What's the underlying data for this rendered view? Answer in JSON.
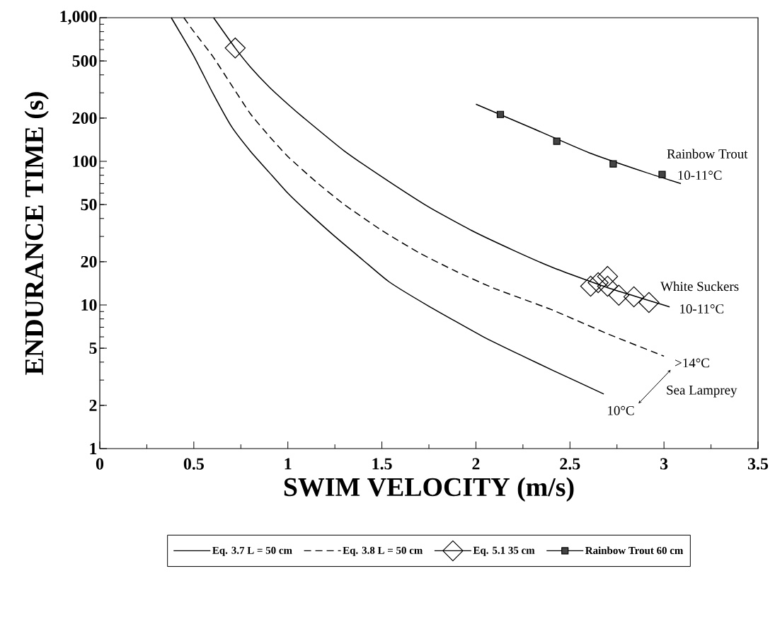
{
  "chart_data": {
    "type": "line",
    "xlabel": "SWIM VELOCITY (m/s)",
    "ylabel": "ENDURANCE TIME (s)",
    "xlim": [
      0,
      3.5
    ],
    "ylim": [
      1,
      1000
    ],
    "log": "y",
    "xticks": [
      0,
      0.5,
      1,
      1.5,
      2,
      2.5,
      3,
      3.5
    ],
    "yticks": [
      1,
      2,
      5,
      10,
      20,
      50,
      100,
      200,
      500,
      {
        "value": 1000,
        "label": "1,000"
      }
    ],
    "legend": "bottom",
    "series": [
      {
        "name": "Eq. 3.7 L = 50 cm",
        "color": "#000000",
        "line_style": "solid",
        "marker": "none",
        "x": [
          0.38,
          0.5,
          0.6,
          0.7,
          0.8,
          0.9,
          1.0,
          1.1,
          1.25,
          1.4,
          1.538,
          1.75,
          2.04,
          2.25,
          2.41,
          2.68
        ],
        "values": [
          1000,
          540,
          300,
          175,
          118,
          84,
          60,
          45,
          30,
          20.5,
          14.5,
          9.8,
          6.0,
          4.4,
          3.5,
          2.4
        ]
      },
      {
        "name": "Eq. 3.8 L = 50 cm",
        "color": "#000000",
        "line_style": "dashed",
        "marker": "none",
        "x": [
          0.447,
          0.5,
          0.6,
          0.7,
          0.8,
          0.9,
          1.0,
          1.15,
          1.3,
          1.5,
          1.7,
          1.9,
          2.1,
          2.4,
          2.7,
          3.0
        ],
        "values": [
          1000,
          800,
          540,
          340,
          215,
          150,
          108,
          72,
          50,
          33,
          23,
          17,
          13,
          9.3,
          6.3,
          4.4
        ]
      },
      {
        "name": "Eq. 5.1 35 cm",
        "color": "#000000",
        "line_style": "solid",
        "marker": "none",
        "x": [
          0.605,
          0.72,
          0.8,
          0.9,
          1.0,
          1.086,
          1.3,
          1.5,
          1.75,
          1.977,
          2.2,
          2.41,
          2.7,
          3.03
        ],
        "values": [
          1000,
          615,
          455,
          330,
          250,
          200,
          118,
          78,
          48,
          33,
          24,
          18.2,
          13.2,
          9.7
        ]
      },
      {
        "type": "scatter",
        "color": "#000000",
        "marker": "diamond",
        "x": [
          0.72,
          2.61,
          2.65,
          2.7,
          2.7,
          2.76,
          2.84,
          2.92
        ],
        "values": [
          615,
          13.5,
          14.3,
          15.8,
          13.5,
          11.7,
          11.4,
          10.4
        ]
      },
      {
        "name": "Rainbow Trout 60 cm",
        "color": "#000000",
        "line_style": "solid",
        "marker": "none",
        "x": [
          2.0,
          2.3,
          2.6,
          2.9,
          3.09
        ],
        "values": [
          250,
          170,
          115,
          84,
          70
        ]
      },
      {
        "type": "scatter",
        "color": "#444444",
        "marker": "square",
        "x": [
          2.13,
          2.43,
          2.73,
          2.99
        ],
        "values": [
          212,
          138,
          96,
          81
        ]
      }
    ],
    "annotations": [
      "Rainbow Trout",
      "10-11°C",
      "White Suckers",
      "10-11°C",
      ">14°C",
      "Sea Lamprey",
      "10°C"
    ]
  }
}
